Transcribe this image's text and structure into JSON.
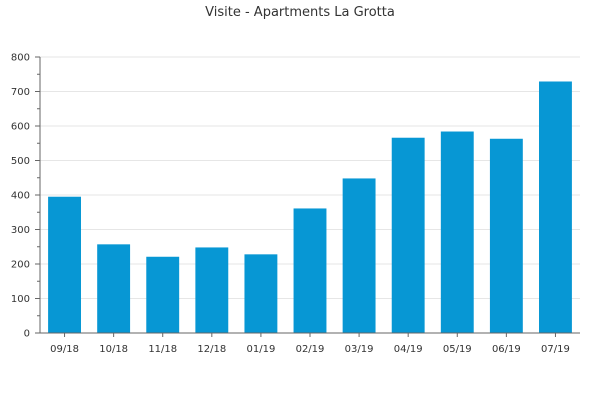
{
  "chart_data": {
    "type": "bar",
    "title": "Visite - Apartments La Grotta",
    "xlabel": "",
    "ylabel": "",
    "categories": [
      "09/18",
      "10/18",
      "11/18",
      "12/18",
      "01/19",
      "02/19",
      "03/19",
      "04/19",
      "05/19",
      "06/19",
      "07/19"
    ],
    "values": [
      395,
      257,
      221,
      248,
      228,
      361,
      448,
      566,
      584,
      563,
      729
    ],
    "ylim": [
      0,
      800
    ],
    "yticks": [
      0,
      100,
      200,
      300,
      400,
      500,
      600,
      700,
      800
    ],
    "grid": true,
    "legend": "none",
    "bar_color": "#0797d4"
  }
}
